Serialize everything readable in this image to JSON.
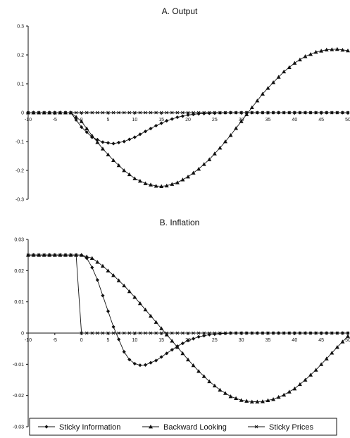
{
  "chart_data": [
    {
      "type": "line",
      "title": "A. Output",
      "xlabel": "",
      "ylabel": "",
      "xlim": [
        -10,
        50
      ],
      "ylim": [
        -0.3,
        0.3
      ],
      "x_ticks": [
        "-10",
        "-5",
        "0",
        "5",
        "10",
        "15",
        "20",
        "25",
        "30",
        "35",
        "40",
        "45",
        "50"
      ],
      "y_ticks": [
        "0.3",
        "0.2",
        "0.1",
        "0",
        "-0.1",
        "-0.2",
        "-0.3"
      ],
      "series": [
        {
          "name": "Sticky Information",
          "marker": "diamond",
          "x": [
            -10,
            -2,
            0,
            2,
            4,
            6,
            8,
            10,
            12,
            14,
            16,
            18,
            20,
            22,
            24,
            26,
            28,
            30,
            50
          ],
          "y": [
            0,
            0,
            -0.05,
            -0.085,
            -0.102,
            -0.107,
            -0.1,
            -0.085,
            -0.065,
            -0.045,
            -0.028,
            -0.016,
            -0.008,
            -0.004,
            -0.002,
            -0.001,
            0,
            0,
            0
          ]
        },
        {
          "name": "Backward Looking",
          "marker": "triangle",
          "x": [
            -10,
            -2,
            0,
            2,
            4,
            6,
            8,
            10,
            12,
            14,
            15,
            16,
            18,
            20,
            22,
            24,
            26,
            28,
            30,
            32,
            34,
            36,
            38,
            40,
            42,
            44,
            46,
            48,
            50
          ],
          "y": [
            0,
            0,
            -0.03,
            -0.08,
            -0.125,
            -0.165,
            -0.2,
            -0.228,
            -0.245,
            -0.254,
            -0.255,
            -0.253,
            -0.242,
            -0.222,
            -0.195,
            -0.162,
            -0.122,
            -0.078,
            -0.03,
            0.018,
            0.065,
            0.105,
            0.142,
            0.172,
            0.195,
            0.21,
            0.218,
            0.22,
            0.215
          ]
        },
        {
          "name": "Sticky Prices",
          "marker": "x",
          "x": [
            -10,
            50
          ],
          "y": [
            0,
            0
          ]
        }
      ]
    },
    {
      "type": "line",
      "title": "B. Inflation",
      "xlabel": "",
      "ylabel": "",
      "xlim": [
        -10,
        50
      ],
      "ylim": [
        -0.03,
        0.03
      ],
      "x_ticks": [
        "-10",
        "-5",
        "0",
        "5",
        "10",
        "15",
        "20",
        "25",
        "30",
        "35",
        "40",
        "45",
        "50"
      ],
      "y_ticks": [
        "0.03",
        "0.02",
        "0.01",
        "0",
        "-0.01",
        "-0.02",
        "-0.03"
      ],
      "legend_position": "bottom",
      "series": [
        {
          "name": "Sticky Information",
          "marker": "diamond",
          "x": [
            -10,
            -1,
            0,
            1,
            2,
            3,
            4,
            5,
            6,
            7,
            8,
            9,
            10,
            11,
            12,
            14,
            16,
            18,
            20,
            22,
            24,
            26,
            28,
            30,
            50
          ],
          "y": [
            0.025,
            0.025,
            0.025,
            0.024,
            0.021,
            0.017,
            0.012,
            0.007,
            0.002,
            -0.002,
            -0.006,
            -0.0085,
            -0.0098,
            -0.0103,
            -0.0102,
            -0.0088,
            -0.0065,
            -0.0042,
            -0.0024,
            -0.0012,
            -0.0005,
            -0.0002,
            0,
            0,
            0
          ]
        },
        {
          "name": "Backward Looking",
          "marker": "triangle",
          "x": [
            -10,
            -1,
            0,
            2,
            4,
            6,
            8,
            10,
            12,
            14,
            16,
            18,
            20,
            22,
            24,
            26,
            28,
            30,
            32,
            33,
            34,
            36,
            38,
            40,
            42,
            44,
            46,
            48,
            50
          ],
          "y": [
            0.025,
            0.025,
            0.025,
            0.024,
            0.0215,
            0.0185,
            0.0152,
            0.0115,
            0.0075,
            0.0035,
            -0.0005,
            -0.0045,
            -0.0085,
            -0.0122,
            -0.0155,
            -0.0182,
            -0.0203,
            -0.0215,
            -0.022,
            -0.022,
            -0.0219,
            -0.0212,
            -0.0198,
            -0.0178,
            -0.015,
            -0.0118,
            -0.0082,
            -0.0045,
            -0.001
          ]
        },
        {
          "name": "Sticky Prices",
          "marker": "x",
          "x": [
            -10,
            -1,
            0,
            1,
            50
          ],
          "y": [
            0.025,
            0.025,
            0,
            0,
            0
          ]
        }
      ]
    }
  ]
}
